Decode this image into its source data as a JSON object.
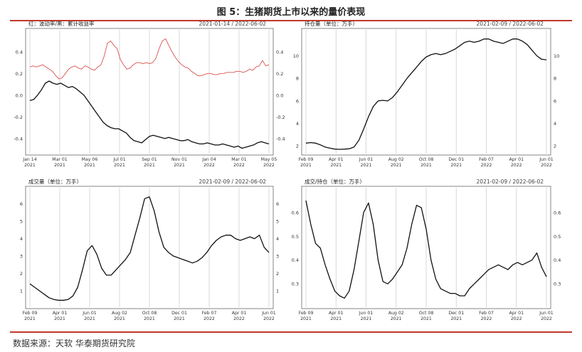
{
  "figure": {
    "title": "图 5：生猪期货上市以来的量价表现",
    "source": "数据来源：天软  华泰期货研究院",
    "accent_color": "#c0392b"
  },
  "chart_data": [
    {
      "type": "line",
      "title": "红：波动率/黑：累计收益率",
      "date_range": "2021-01-14 / 2022-06-02",
      "x_ticks": [
        "Jan 14\n2021",
        "Mar 01\n2021",
        "May 06\n2021",
        "Jul 01\n2021",
        "Sep 01\n2021",
        "Nov 01\n2021",
        "Jan 04\n2022",
        "Mar 01\n2022",
        "May 05\n2022"
      ],
      "y_ticks": [
        "-0.4",
        "-0.2",
        "0.0",
        "0.2",
        "0.4"
      ],
      "ylim": [
        -0.5,
        0.55
      ],
      "grid": true,
      "series": [
        {
          "color": "#d9534f",
          "values": [
            0.26,
            0.27,
            0.26,
            0.27,
            0.28,
            0.26,
            0.24,
            0.22,
            0.18,
            0.15,
            0.16,
            0.2,
            0.24,
            0.26,
            0.27,
            0.25,
            0.24,
            0.27,
            0.26,
            0.24,
            0.23,
            0.26,
            0.28,
            0.36,
            0.48,
            0.5,
            0.46,
            0.43,
            0.33,
            0.28,
            0.24,
            0.25,
            0.28,
            0.3,
            0.3,
            0.29,
            0.3,
            0.29,
            0.3,
            0.34,
            0.43,
            0.5,
            0.52,
            0.46,
            0.4,
            0.35,
            0.31,
            0.28,
            0.26,
            0.25,
            0.22,
            0.2,
            0.18,
            0.18,
            0.19,
            0.2,
            0.2,
            0.19,
            0.19,
            0.2,
            0.2,
            0.21,
            0.21,
            0.21,
            0.22,
            0.22,
            0.21,
            0.22,
            0.24,
            0.23,
            0.26,
            0.27,
            0.32,
            0.27,
            0.28
          ]
        },
        {
          "color": "#111111",
          "values": [
            -0.05,
            -0.04,
            0.0,
            0.05,
            0.11,
            0.13,
            0.11,
            0.1,
            0.11,
            0.09,
            0.07,
            0.08,
            0.06,
            0.03,
            0.0,
            -0.05,
            -0.1,
            -0.15,
            -0.2,
            -0.25,
            -0.28,
            -0.3,
            -0.31,
            -0.31,
            -0.33,
            -0.35,
            -0.39,
            -0.42,
            -0.43,
            -0.44,
            -0.41,
            -0.38,
            -0.37,
            -0.38,
            -0.39,
            -0.4,
            -0.39,
            -0.4,
            -0.41,
            -0.42,
            -0.42,
            -0.41,
            -0.43,
            -0.44,
            -0.45,
            -0.45,
            -0.44,
            -0.45,
            -0.46,
            -0.46,
            -0.45,
            -0.46,
            -0.47,
            -0.48,
            -0.47,
            -0.49,
            -0.48,
            -0.47,
            -0.46,
            -0.44,
            -0.43,
            -0.44,
            -0.45
          ]
        }
      ]
    },
    {
      "type": "line",
      "title": "持仓量（单位：万手）",
      "date_range": "2021-02-09 / 2022-06-02",
      "x_ticks": [
        "Feb 09\n2021",
        "Apr 01\n2021",
        "Jun 01\n2021",
        "Aug 02\n2021",
        "Oct 08\n2021",
        "Dec 01\n2021",
        "Feb 07\n2022",
        "Apr 01\n2022",
        "Jun 01\n2022"
      ],
      "y_ticks": [
        "2",
        "4",
        "6",
        "8",
        "10"
      ],
      "ylim": [
        1.7,
        11.8
      ],
      "grid": true,
      "series": [
        {
          "color": "#111111",
          "values": [
            2.25,
            2.3,
            2.25,
            2.1,
            1.9,
            1.8,
            1.72,
            1.7,
            1.72,
            1.75,
            1.9,
            2.5,
            3.5,
            4.6,
            5.5,
            6.0,
            6.05,
            6.0,
            6.3,
            6.8,
            7.4,
            8.0,
            8.5,
            9.0,
            9.5,
            9.9,
            10.1,
            10.2,
            10.1,
            10.2,
            10.4,
            10.6,
            10.9,
            11.2,
            11.3,
            11.2,
            11.3,
            11.5,
            11.5,
            11.3,
            11.2,
            11.1,
            11.3,
            11.5,
            11.5,
            11.3,
            11.0,
            10.5,
            10.0,
            9.7,
            9.65
          ]
        }
      ]
    },
    {
      "type": "line",
      "title": "成交量（单位：万手）",
      "date_range": "2021-02-09 / 2022-06-02",
      "x_ticks": [
        "Feb 09\n2021",
        "Apr 01\n2021",
        "Jun 01\n2021",
        "Aug 02\n2021",
        "Oct 08\n2021",
        "Dec 01\n2021",
        "Feb 07\n2022",
        "Apr 01\n2022",
        "Jun 01\n2022"
      ],
      "y_ticks": [
        "1",
        "2",
        "3",
        "4",
        "5",
        "6"
      ],
      "ylim": [
        0.3,
        6.6
      ],
      "grid": true,
      "series": [
        {
          "color": "#111111",
          "values": [
            1.4,
            1.2,
            1.0,
            0.8,
            0.6,
            0.5,
            0.45,
            0.45,
            0.5,
            0.7,
            1.2,
            2.2,
            3.3,
            3.6,
            3.1,
            2.3,
            1.9,
            1.9,
            2.2,
            2.5,
            2.8,
            3.2,
            4.2,
            5.2,
            6.3,
            6.4,
            5.6,
            4.4,
            3.5,
            3.2,
            3.0,
            2.9,
            2.8,
            2.7,
            2.6,
            2.7,
            2.9,
            3.2,
            3.6,
            3.9,
            4.1,
            4.2,
            4.2,
            4.0,
            3.9,
            4.0,
            4.1,
            4.0,
            4.2,
            3.5,
            3.2
          ]
        }
      ]
    },
    {
      "type": "line",
      "title": "成交/持仓（单位：万手）",
      "date_range": "2021-02-09 / 2022-06-02",
      "x_ticks": [
        "Feb 09\n2021",
        "Apr 01\n2021",
        "Jun 01\n2021",
        "Aug 02\n2021",
        "Oct 08\n2021",
        "Dec 01\n2021",
        "Feb 07\n2022",
        "Apr 01\n2022",
        "Jun 01\n2022"
      ],
      "y_ticks": [
        "0.3",
        "0.4",
        "0.5",
        "0.6"
      ],
      "ylim": [
        0.22,
        0.68
      ],
      "grid": true,
      "series": [
        {
          "color": "#111111",
          "values": [
            0.65,
            0.55,
            0.47,
            0.45,
            0.38,
            0.32,
            0.27,
            0.25,
            0.24,
            0.27,
            0.36,
            0.48,
            0.6,
            0.64,
            0.55,
            0.4,
            0.31,
            0.3,
            0.32,
            0.35,
            0.38,
            0.45,
            0.55,
            0.63,
            0.62,
            0.53,
            0.4,
            0.32,
            0.28,
            0.27,
            0.26,
            0.26,
            0.25,
            0.25,
            0.28,
            0.3,
            0.32,
            0.34,
            0.36,
            0.37,
            0.38,
            0.37,
            0.36,
            0.38,
            0.39,
            0.38,
            0.39,
            0.4,
            0.43,
            0.37,
            0.33
          ]
        }
      ]
    }
  ]
}
